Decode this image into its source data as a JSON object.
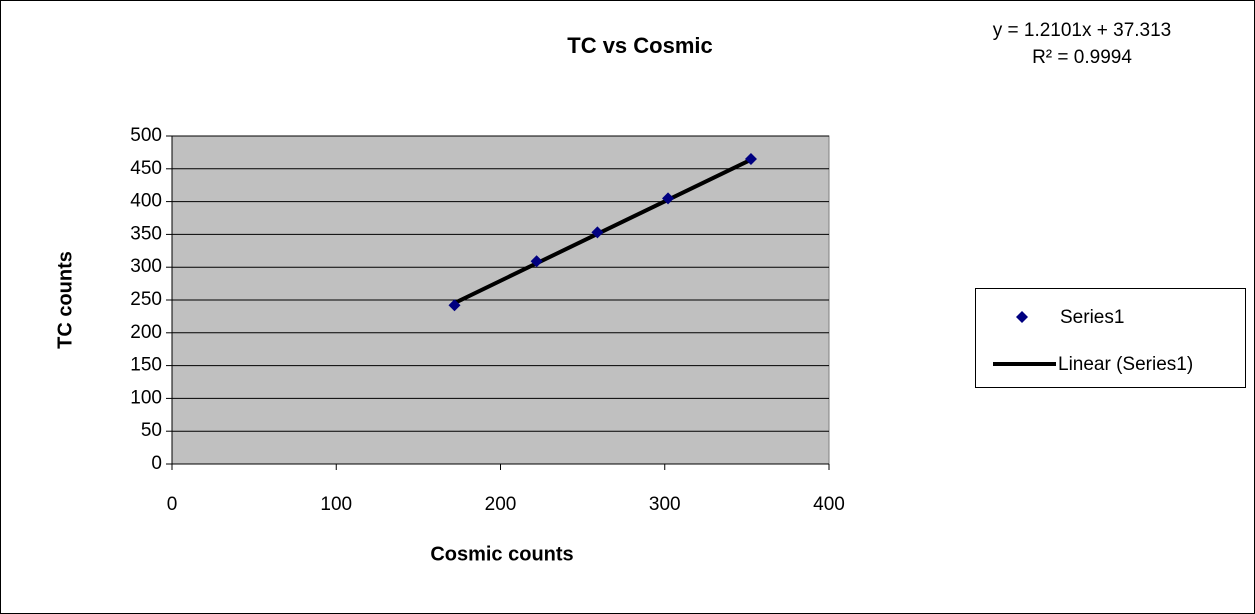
{
  "chart_data": {
    "type": "scatter",
    "title": "TC vs Cosmic",
    "xlabel": "Cosmic counts",
    "ylabel": "TC counts",
    "series": [
      {
        "name": "Series1",
        "color": "#000080",
        "x": [
          172,
          222,
          259,
          302,
          352.5
        ],
        "values": [
          242,
          309,
          353,
          405,
          465
        ]
      }
    ],
    "trendline": {
      "name": "Linear (Series1)",
      "color": "#000000",
      "x": [
        172,
        352.5
      ],
      "values": [
        245.4,
        463.9
      ]
    },
    "annotations": [
      "y = 1.2101x + 37.313",
      "R² = 0.9994"
    ],
    "xlim": [
      0,
      400
    ],
    "xticks": [
      0,
      100,
      200,
      300,
      400
    ],
    "ylim": [
      0,
      500
    ],
    "yticks": [
      0,
      50,
      100,
      150,
      200,
      250,
      300,
      350,
      400,
      450,
      500
    ],
    "grid": true,
    "legend": "right"
  }
}
